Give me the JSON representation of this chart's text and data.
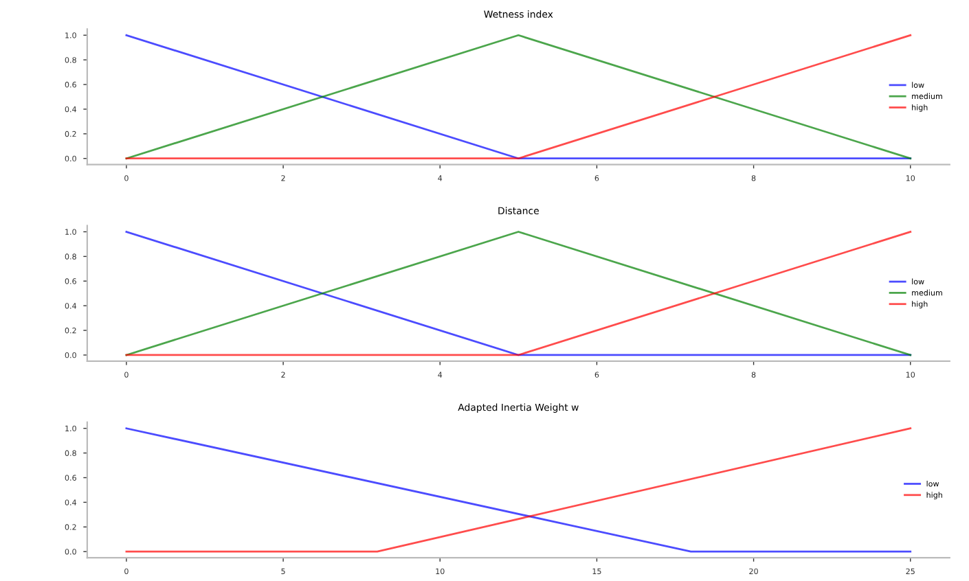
{
  "chart_data": [
    {
      "type": "line",
      "title": "Wetness index",
      "xlim": [
        -0.5,
        10.5
      ],
      "xticks": [
        0,
        2,
        4,
        6,
        8,
        10
      ],
      "ylim": [
        -0.05,
        1.05
      ],
      "yticks": [
        {
          "value": 0,
          "label": "0.0"
        },
        {
          "value": 0.2,
          "label": "0.2"
        },
        {
          "value": 0.4,
          "label": "0.4"
        },
        {
          "value": 0.6,
          "label": "0.6"
        },
        {
          "value": 0.8,
          "label": "0.8"
        },
        {
          "value": 1,
          "label": "1.0"
        }
      ],
      "legend": "right",
      "grid": false,
      "series": [
        {
          "name": "low",
          "color": "#0000ff",
          "x": [
            0,
            5,
            10
          ],
          "values": [
            1,
            0,
            0
          ]
        },
        {
          "name": "medium",
          "color": "#008000",
          "x": [
            0,
            5,
            10
          ],
          "values": [
            0,
            1,
            0
          ]
        },
        {
          "name": "high",
          "color": "#ff0000",
          "x": [
            0,
            5,
            10
          ],
          "values": [
            0,
            0,
            1
          ]
        }
      ]
    },
    {
      "type": "line",
      "title": "Distance",
      "xlim": [
        -0.5,
        10.5
      ],
      "xticks": [
        0,
        2,
        4,
        6,
        8,
        10
      ],
      "ylim": [
        -0.05,
        1.05
      ],
      "yticks": [
        {
          "value": 0,
          "label": "0.0"
        },
        {
          "value": 0.2,
          "label": "0.2"
        },
        {
          "value": 0.4,
          "label": "0.4"
        },
        {
          "value": 0.6,
          "label": "0.6"
        },
        {
          "value": 0.8,
          "label": "0.8"
        },
        {
          "value": 1,
          "label": "1.0"
        }
      ],
      "legend": "right",
      "grid": false,
      "series": [
        {
          "name": "low",
          "color": "#0000ff",
          "x": [
            0,
            5,
            10
          ],
          "values": [
            1,
            0,
            0
          ]
        },
        {
          "name": "medium",
          "color": "#008000",
          "x": [
            0,
            5,
            10
          ],
          "values": [
            0,
            1,
            0
          ]
        },
        {
          "name": "high",
          "color": "#ff0000",
          "x": [
            0,
            5,
            10
          ],
          "values": [
            0,
            0,
            1
          ]
        }
      ]
    },
    {
      "type": "line",
      "title": "Adapted Inertia Weight w",
      "xlim": [
        -1.25,
        26.25
      ],
      "xticks": [
        0,
        5,
        10,
        15,
        20,
        25
      ],
      "ylim": [
        -0.05,
        1.05
      ],
      "yticks": [
        {
          "value": 0,
          "label": "0.0"
        },
        {
          "value": 0.2,
          "label": "0.2"
        },
        {
          "value": 0.4,
          "label": "0.4"
        },
        {
          "value": 0.6,
          "label": "0.6"
        },
        {
          "value": 0.8,
          "label": "0.8"
        },
        {
          "value": 1,
          "label": "1.0"
        }
      ],
      "legend": "right",
      "grid": false,
      "series": [
        {
          "name": "low",
          "color": "#0000ff",
          "x": [
            0,
            18,
            25
          ],
          "values": [
            1,
            0,
            0
          ]
        },
        {
          "name": "high",
          "color": "#ff0000",
          "x": [
            0,
            8,
            25
          ],
          "values": [
            0,
            0,
            1
          ]
        }
      ]
    }
  ]
}
